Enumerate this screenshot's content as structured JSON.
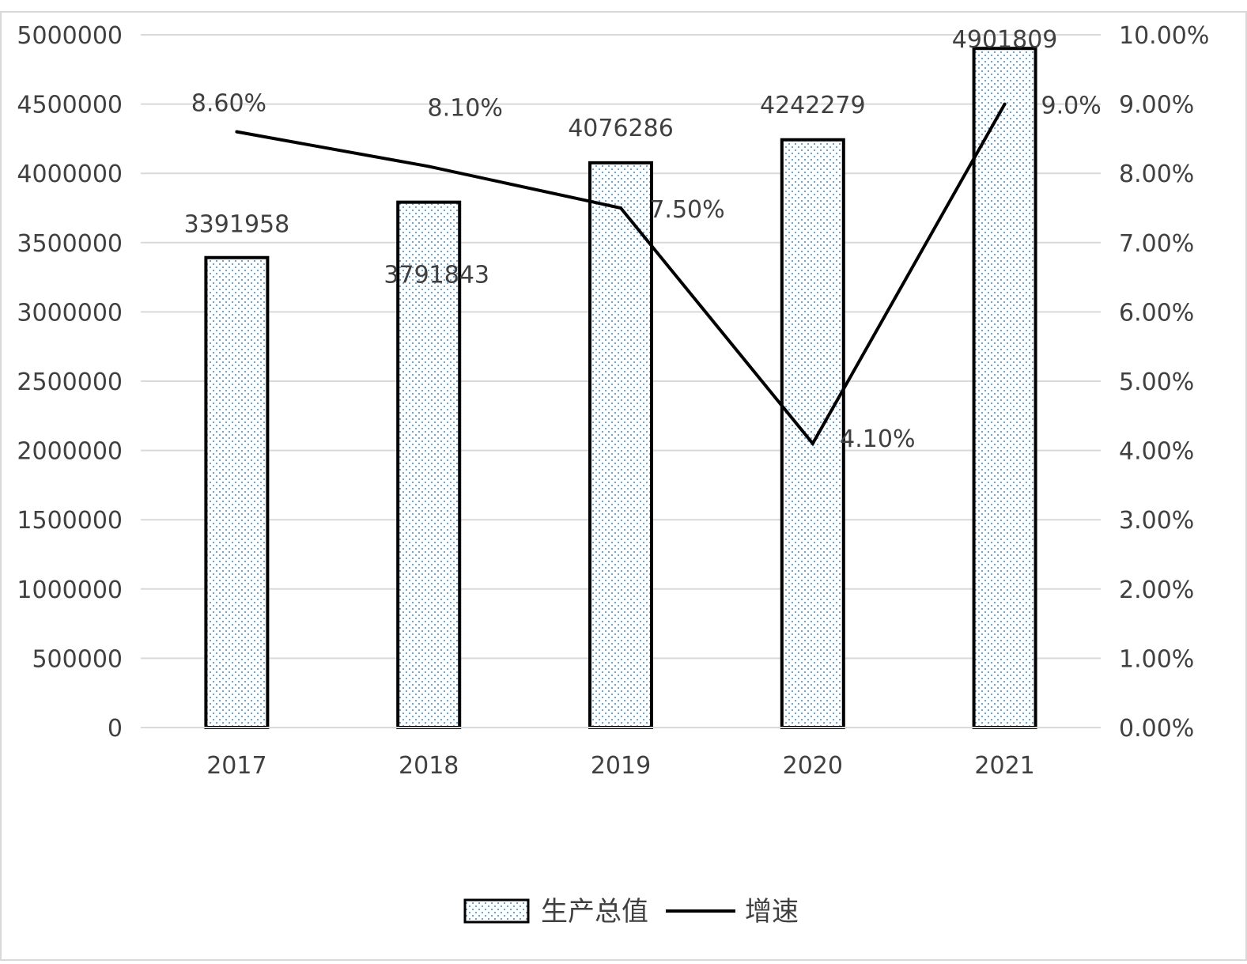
{
  "chart_data": {
    "type": "bar",
    "categories": [
      "2017",
      "2018",
      "2019",
      "2020",
      "2021"
    ],
    "series": [
      {
        "name": "生产总值",
        "type": "bar",
        "axis": "left",
        "values": [
          3391958,
          3791843,
          4076286,
          4242279,
          4901809
        ],
        "labels": [
          "3391958",
          "3791843",
          "4076286",
          "4242279",
          "4901809"
        ]
      },
      {
        "name": "增速",
        "type": "line",
        "axis": "right",
        "values": [
          8.6,
          8.1,
          7.5,
          4.1,
          9.0
        ],
        "labels": [
          "8.60%",
          "8.10%",
          "7.50%",
          "4.10%",
          "9.0%"
        ]
      }
    ],
    "y_left": {
      "ylim": [
        0,
        5000000
      ],
      "ticks": [
        "0",
        "500000",
        "1000000",
        "1500000",
        "2000000",
        "2500000",
        "3000000",
        "3500000",
        "4000000",
        "4500000",
        "5000000"
      ]
    },
    "y_right": {
      "ylim": [
        0,
        10
      ],
      "ticks": [
        "0.00%",
        "1.00%",
        "2.00%",
        "3.00%",
        "4.00%",
        "5.00%",
        "6.00%",
        "7.00%",
        "8.00%",
        "9.00%",
        "10.00%"
      ]
    },
    "grid": true,
    "legend": "bottom-center",
    "colors": {
      "bar_fill_dots": "#5b9bd5",
      "bar_outline": "#000000",
      "line": "#000000",
      "grid": "#d9d9d9",
      "text": "#404040"
    }
  }
}
